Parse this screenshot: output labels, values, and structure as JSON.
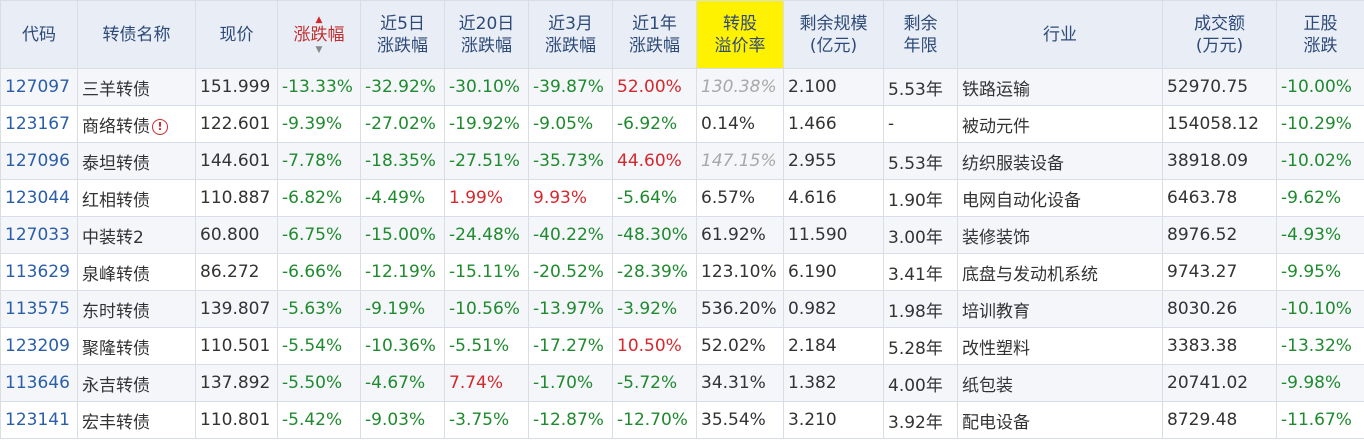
{
  "headers": {
    "code": "代码",
    "name": "转债名称",
    "price": "现价",
    "change": "涨跌幅",
    "chg5d": [
      "近5日",
      "涨跌幅"
    ],
    "chg20d": [
      "近20日",
      "涨跌幅"
    ],
    "chg3m": [
      "近3月",
      "涨跌幅"
    ],
    "chg1y": [
      "近1年",
      "涨跌幅"
    ],
    "premium": [
      "转股",
      "溢价率"
    ],
    "size": [
      "剩余规模",
      "(亿元)"
    ],
    "term": [
      "剩余",
      "年限"
    ],
    "industry": "行业",
    "turnover": [
      "成交额",
      "(万元)"
    ],
    "stock_change": [
      "正股",
      "涨跌"
    ]
  },
  "colors": {
    "header_bg": "#e9eef6",
    "highlight": "#fff200",
    "positive": "#d4282d",
    "negative": "#1f8a2e",
    "link": "#2a5ea8"
  },
  "rows": [
    {
      "code": "127097",
      "name": "三羊转债",
      "warn": false,
      "price": "151.999",
      "change": "-13.33%",
      "chg5d": "-32.92%",
      "chg20d": "-30.10%",
      "chg3m": "-39.87%",
      "chg1y": "52.00%",
      "premium": "130.38%",
      "premium_dim": true,
      "size": "2.100",
      "term": "5.53年",
      "industry": "铁路运输",
      "turnover": "52970.75",
      "stock_change": "-10.00%"
    },
    {
      "code": "123167",
      "name": "商络转债",
      "warn": true,
      "price": "122.601",
      "change": "-9.39%",
      "chg5d": "-27.02%",
      "chg20d": "-19.92%",
      "chg3m": "-9.05%",
      "chg1y": "-6.92%",
      "premium": "0.14%",
      "premium_dim": false,
      "size": "1.466",
      "term": "-",
      "industry": "被动元件",
      "turnover": "154058.12",
      "stock_change": "-10.29%"
    },
    {
      "code": "127096",
      "name": "泰坦转债",
      "warn": false,
      "price": "144.601",
      "change": "-7.78%",
      "chg5d": "-18.35%",
      "chg20d": "-27.51%",
      "chg3m": "-35.73%",
      "chg1y": "44.60%",
      "premium": "147.15%",
      "premium_dim": true,
      "size": "2.955",
      "term": "5.53年",
      "industry": "纺织服装设备",
      "turnover": "38918.09",
      "stock_change": "-10.02%"
    },
    {
      "code": "123044",
      "name": "红相转债",
      "warn": false,
      "price": "110.887",
      "change": "-6.82%",
      "chg5d": "-4.49%",
      "chg20d": "1.99%",
      "chg3m": "9.93%",
      "chg1y": "-5.64%",
      "premium": "6.57%",
      "premium_dim": false,
      "size": "4.616",
      "term": "1.90年",
      "industry": "电网自动化设备",
      "turnover": "6463.78",
      "stock_change": "-9.62%"
    },
    {
      "code": "127033",
      "name": "中装转2",
      "warn": false,
      "price": "60.800",
      "change": "-6.75%",
      "chg5d": "-15.00%",
      "chg20d": "-24.48%",
      "chg3m": "-40.22%",
      "chg1y": "-48.30%",
      "premium": "61.92%",
      "premium_dim": false,
      "size": "11.590",
      "term": "3.00年",
      "industry": "装修装饰",
      "turnover": "8976.52",
      "stock_change": "-4.93%"
    },
    {
      "code": "113629",
      "name": "泉峰转债",
      "warn": false,
      "price": "86.272",
      "change": "-6.66%",
      "chg5d": "-12.19%",
      "chg20d": "-15.11%",
      "chg3m": "-20.52%",
      "chg1y": "-28.39%",
      "premium": "123.10%",
      "premium_dim": false,
      "size": "6.190",
      "term": "3.41年",
      "industry": "底盘与发动机系统",
      "turnover": "9743.27",
      "stock_change": "-9.95%"
    },
    {
      "code": "113575",
      "name": "东时转债",
      "warn": false,
      "price": "139.807",
      "change": "-5.63%",
      "chg5d": "-9.19%",
      "chg20d": "-10.56%",
      "chg3m": "-13.97%",
      "chg1y": "-3.92%",
      "premium": "536.20%",
      "premium_dim": false,
      "size": "0.982",
      "term": "1.98年",
      "industry": "培训教育",
      "turnover": "8030.26",
      "stock_change": "-10.10%"
    },
    {
      "code": "123209",
      "name": "聚隆转债",
      "warn": false,
      "price": "110.501",
      "change": "-5.54%",
      "chg5d": "-10.36%",
      "chg20d": "-5.51%",
      "chg3m": "-17.27%",
      "chg1y": "10.50%",
      "premium": "52.02%",
      "premium_dim": false,
      "size": "2.184",
      "term": "5.28年",
      "industry": "改性塑料",
      "turnover": "3383.38",
      "stock_change": "-13.32%"
    },
    {
      "code": "113646",
      "name": "永吉转债",
      "warn": false,
      "price": "137.892",
      "change": "-5.50%",
      "chg5d": "-4.67%",
      "chg20d": "7.74%",
      "chg3m": "-1.70%",
      "chg1y": "-5.72%",
      "premium": "34.31%",
      "premium_dim": false,
      "size": "1.382",
      "term": "4.00年",
      "industry": "纸包装",
      "turnover": "20741.02",
      "stock_change": "-9.98%"
    },
    {
      "code": "123141",
      "name": "宏丰转债",
      "warn": false,
      "price": "110.801",
      "change": "-5.42%",
      "chg5d": "-9.03%",
      "chg20d": "-3.75%",
      "chg3m": "-12.87%",
      "chg1y": "-12.70%",
      "premium": "35.54%",
      "premium_dim": false,
      "size": "3.210",
      "term": "3.92年",
      "industry": "配电设备",
      "turnover": "8729.48",
      "stock_change": "-11.67%"
    }
  ]
}
